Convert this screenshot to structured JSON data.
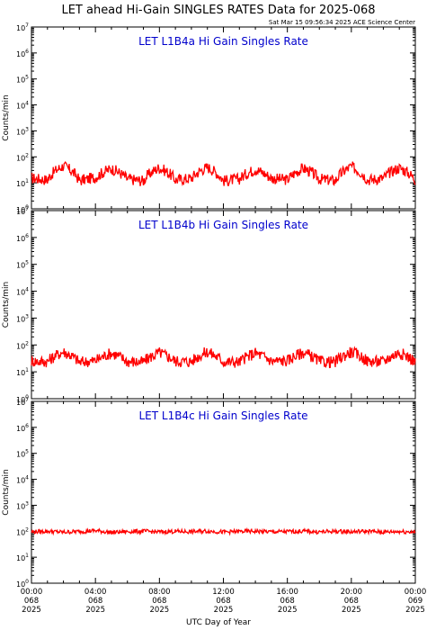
{
  "title": "LET ahead Hi-Gain SINGLES RATES Data for 2025-068",
  "timestamp": "Sat Mar 15 09:56:34 2025 ACE Science Center",
  "xlabel": "UTC Day of Year",
  "colors": {
    "series": "#ff0000",
    "panel_title": "#0000cc",
    "axes": "#000000"
  },
  "chart_data": [
    {
      "type": "line",
      "title": "LET L1B4a Hi Gain Singles Rate",
      "ylabel": "Counts/min",
      "yscale": "log",
      "ylim": [
        1,
        10000000
      ],
      "xlim": [
        0,
        24
      ],
      "y_ticks": [
        "10^0",
        "10^1",
        "10^2",
        "10^3",
        "10^4",
        "10^5",
        "10^6",
        "10^7"
      ],
      "x": [
        0,
        1,
        2,
        3,
        4,
        5,
        6,
        7,
        8,
        9,
        10,
        11,
        12,
        13,
        14,
        15,
        16,
        17,
        18,
        19,
        20,
        21,
        22,
        23,
        24
      ],
      "values": [
        15,
        13,
        45,
        12,
        16,
        35,
        14,
        12,
        38,
        13,
        15,
        40,
        12,
        14,
        33,
        15,
        13,
        36,
        14,
        12,
        42,
        13,
        15,
        38,
        13
      ]
    },
    {
      "type": "line",
      "title": "LET L1B4b Hi Gain Singles Rate",
      "ylabel": "Counts/min",
      "yscale": "log",
      "ylim": [
        1,
        10000000
      ],
      "xlim": [
        0,
        24
      ],
      "y_ticks": [
        "10^0",
        "10^1",
        "10^2",
        "10^3",
        "10^4",
        "10^5",
        "10^6",
        "10^7"
      ],
      "x": [
        0,
        1,
        2,
        3,
        4,
        5,
        6,
        7,
        8,
        9,
        10,
        11,
        12,
        13,
        14,
        15,
        16,
        17,
        18,
        19,
        20,
        21,
        22,
        23,
        24
      ],
      "values": [
        25,
        24,
        55,
        23,
        26,
        50,
        24,
        23,
        52,
        25,
        24,
        55,
        24,
        23,
        50,
        25,
        26,
        52,
        24,
        23,
        55,
        25,
        24,
        52,
        23
      ]
    },
    {
      "type": "line",
      "title": "LET L1B4c Hi Gain Singles Rate",
      "ylabel": "Counts/min",
      "yscale": "log",
      "ylim": [
        1,
        10000000
      ],
      "xlim": [
        0,
        24
      ],
      "y_ticks": [
        "10^0",
        "10^1",
        "10^2",
        "10^3",
        "10^4",
        "10^5",
        "10^6",
        "10^7"
      ],
      "x_tick_labels": [
        [
          "00:00",
          "068",
          "2025"
        ],
        [
          "04:00",
          "068",
          "2025"
        ],
        [
          "08:00",
          "068",
          "2025"
        ],
        [
          "12:00",
          "068",
          "2025"
        ],
        [
          "16:00",
          "068",
          "2025"
        ],
        [
          "20:00",
          "068",
          "2025"
        ],
        [
          "00:00",
          "069",
          "2025"
        ]
      ],
      "x": [
        0,
        1,
        2,
        3,
        4,
        5,
        6,
        7,
        8,
        9,
        10,
        11,
        12,
        13,
        14,
        15,
        16,
        17,
        18,
        19,
        20,
        21,
        22,
        23,
        24
      ],
      "values": [
        95,
        100,
        92,
        98,
        105,
        90,
        97,
        100,
        94,
        99,
        96,
        102,
        93,
        98,
        100,
        95,
        97,
        101,
        94,
        99,
        96,
        100,
        93,
        98,
        95
      ]
    }
  ]
}
